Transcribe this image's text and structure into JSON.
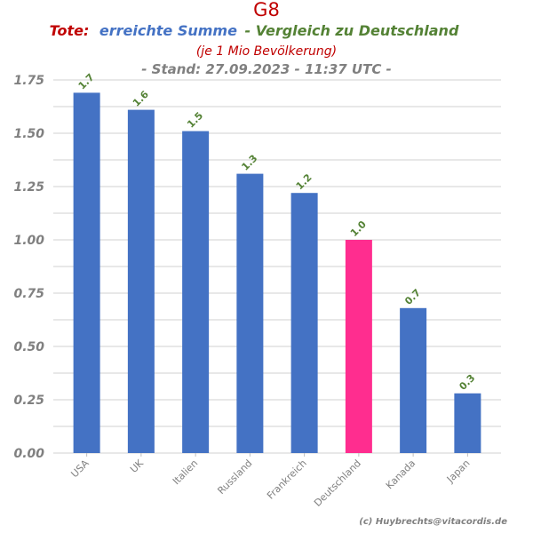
{
  "chart_data": {
    "type": "bar",
    "title": "G8",
    "subtitle": {
      "part_tote": "Tote:",
      "part_summe": "erreichte Summe",
      "part_vergleich": "- Vergleich zu Deutschland",
      "line2": "(je 1 Mio Bevölkerung)",
      "line3": "- Stand: 27.09.2023 - 11:37 UTC -"
    },
    "categories": [
      "USA",
      "UK",
      "Italien",
      "Russland",
      "Frankreich",
      "Deutschland",
      "Kanada",
      "Japan"
    ],
    "values": [
      1.69,
      1.61,
      1.51,
      1.31,
      1.22,
      1.0,
      0.68,
      0.28
    ],
    "data_labels": [
      "1.7",
      "1.6",
      "1.5",
      "1.3",
      "1.2",
      "1.0",
      "0.7",
      "0.3"
    ],
    "highlight_category": "Deutschland",
    "ylim": [
      0,
      1.8
    ],
    "yticks": [
      0,
      0.25,
      0.5,
      0.75,
      1.0,
      1.25,
      1.5,
      1.75
    ],
    "ytick_labels": [
      "0.00",
      "0.25",
      "0.50",
      "0.75",
      "1.00",
      "1.25",
      "1.50",
      "1.75"
    ],
    "grid": true,
    "xlabel": "",
    "ylabel": ""
  },
  "credit": "(c) Huybrechts@vitacordis.de",
  "colors": {
    "bar": "#4472c4",
    "highlight": "#ff2d8f",
    "title": "#c00000",
    "tote": "#c00000",
    "summe": "#4472c4",
    "vergleich": "#548235",
    "stand": "#808080",
    "data_label": "#548235",
    "grid": "#d9d9d9",
    "axis_text": "#808080"
  }
}
